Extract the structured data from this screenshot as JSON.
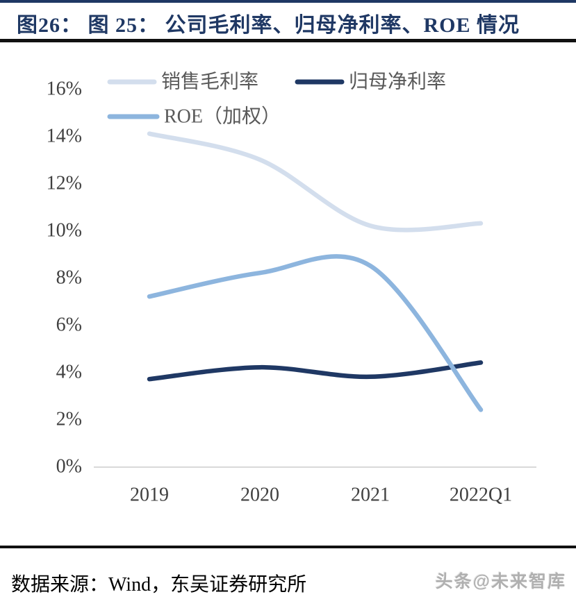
{
  "page": {
    "title": "图26： 图 25： 公司毛利率、归母净利率、ROE 情况",
    "source_note": "数据来源：Wind，东吴证券研究所",
    "watermark": "头条@未来智库"
  },
  "chart_data": {
    "type": "line",
    "title": "公司毛利率、归母净利率、ROE 情况",
    "categories": [
      "2019",
      "2020",
      "2021",
      "2022Q1"
    ],
    "series": [
      {
        "name": "销售毛利率",
        "color": "#d3deed",
        "values": [
          14.1,
          13.0,
          10.2,
          10.3
        ]
      },
      {
        "name": "归母净利率",
        "color": "#1f3864",
        "values": [
          3.7,
          4.2,
          3.8,
          4.4
        ]
      },
      {
        "name": "ROE（加权）",
        "color": "#8db5de",
        "values": [
          7.2,
          8.2,
          8.5,
          2.4
        ]
      }
    ],
    "yticks": [
      "16%",
      "14%",
      "12%",
      "10%",
      "8%",
      "6%",
      "4%",
      "2%",
      "0%"
    ],
    "ylim": [
      0,
      16
    ],
    "ytick_step": 2,
    "xlabel": "",
    "ylabel": "",
    "grid": false,
    "smooth": true,
    "legend_position": "top-left",
    "legend_rows": [
      [
        "销售毛利率",
        "归母净利率"
      ],
      [
        "ROE（加权）"
      ]
    ],
    "axis_color": "#d9d9d9",
    "tick_text_color": "#404040",
    "legend_text_color": "#595959"
  }
}
